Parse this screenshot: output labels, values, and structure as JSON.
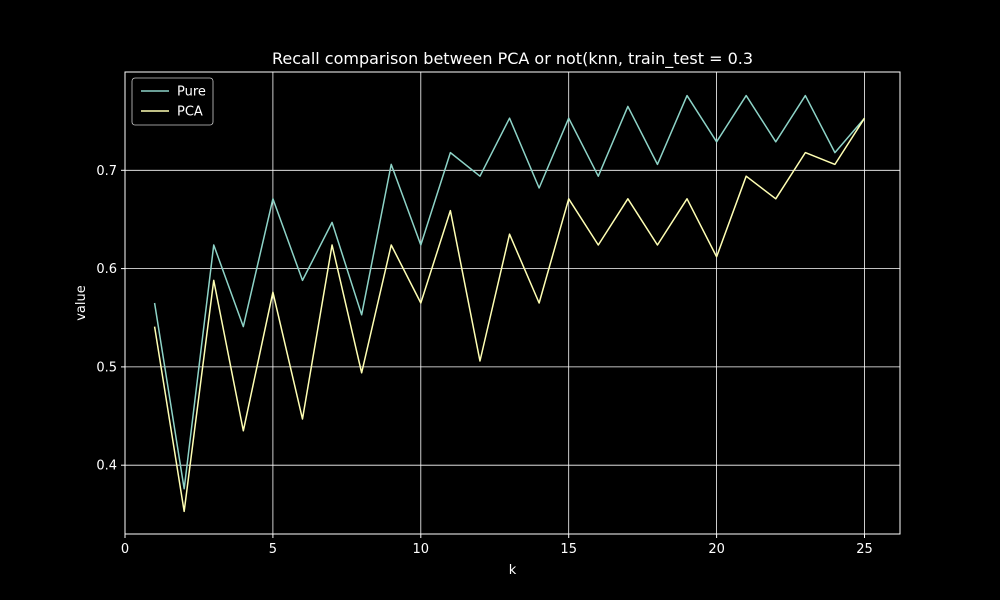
{
  "chart_data": {
    "type": "line",
    "title": "Recall comparison between PCA or not(knn, train_test = 0.3",
    "xlabel": "k",
    "ylabel": "value",
    "xlim": [
      0,
      26.2
    ],
    "ylim": [
      0.33,
      0.8
    ],
    "xticks": [
      0,
      5,
      10,
      15,
      20,
      25
    ],
    "yticks": [
      0.4,
      0.5,
      0.6,
      0.7
    ],
    "xtick_labels": [
      "0",
      "5",
      "10",
      "15",
      "20",
      "25"
    ],
    "ytick_labels": [
      "0.4",
      "0.5",
      "0.6",
      "0.7"
    ],
    "grid": true,
    "legend_position": "top-left",
    "x": [
      1,
      2,
      3,
      4,
      5,
      6,
      7,
      8,
      9,
      10,
      11,
      12,
      13,
      14,
      15,
      16,
      17,
      18,
      19,
      20,
      21,
      22,
      23,
      24,
      25
    ],
    "series": [
      {
        "name": "Pure",
        "color": "#8dd3c7",
        "values": [
          0.565,
          0.376,
          0.624,
          0.541,
          0.671,
          0.588,
          0.647,
          0.553,
          0.706,
          0.624,
          0.718,
          0.694,
          0.753,
          0.682,
          0.753,
          0.694,
          0.765,
          0.706,
          0.776,
          0.729,
          0.776,
          0.729,
          0.776,
          0.718,
          0.753
        ]
      },
      {
        "name": "PCA",
        "color": "#ffffb3",
        "values": [
          0.541,
          0.353,
          0.588,
          0.435,
          0.576,
          0.447,
          0.624,
          0.494,
          0.624,
          0.565,
          0.659,
          0.506,
          0.635,
          0.565,
          0.671,
          0.624,
          0.671,
          0.624,
          0.671,
          0.612,
          0.694,
          0.671,
          0.718,
          0.706,
          0.753
        ]
      }
    ]
  }
}
